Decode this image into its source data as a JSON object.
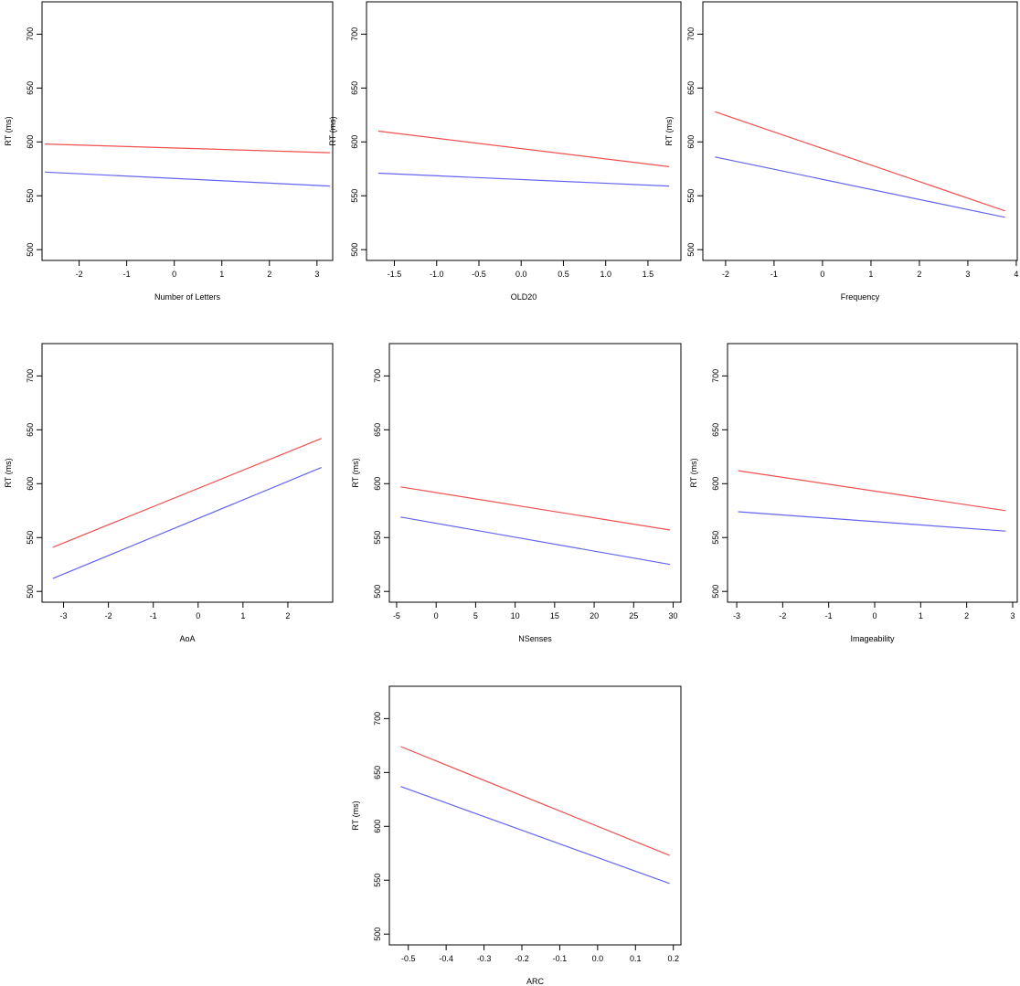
{
  "colors": {
    "red_series": "#f05050",
    "blue_series": "#6464f0",
    "axis": "#000000"
  },
  "chart_data": [
    {
      "type": "line",
      "xlabel": "Number of Letters",
      "ylabel": "RT (ms)",
      "xlim": [
        -2.78,
        3.33
      ],
      "ylim": [
        490,
        730
      ],
      "xticks": [
        -2,
        -1,
        0,
        1,
        2,
        3
      ],
      "xtick_labels": [
        "-2",
        "-1",
        "0",
        "1",
        "2",
        "3"
      ],
      "yticks": [
        500,
        550,
        600,
        650,
        700
      ],
      "ytick_labels": [
        "500",
        "550",
        "600",
        "650",
        "700"
      ],
      "series": [
        {
          "color": "#f05050",
          "x": [
            -2.72,
            3.27
          ],
          "y": [
            598,
            590
          ]
        },
        {
          "color": "#6464f0",
          "x": [
            -2.72,
            3.27
          ],
          "y": [
            572,
            559
          ]
        }
      ]
    },
    {
      "type": "line",
      "xlabel": "OLD20",
      "ylabel": "RT (ms)",
      "xlim": [
        -1.83,
        1.89
      ],
      "ylim": [
        490,
        730
      ],
      "xticks": [
        -1.5,
        -1.0,
        -0.5,
        0.0,
        0.5,
        1.0,
        1.5
      ],
      "xtick_labels": [
        "-1.5",
        "-1.0",
        "-0.5",
        "0.0",
        "0.5",
        "1.0",
        "1.5"
      ],
      "yticks": [
        500,
        550,
        600,
        650,
        700
      ],
      "ytick_labels": [
        "500",
        "550",
        "600",
        "650",
        "700"
      ],
      "series": [
        {
          "color": "#f05050",
          "x": [
            -1.69,
            1.75
          ],
          "y": [
            610,
            577
          ]
        },
        {
          "color": "#6464f0",
          "x": [
            -1.69,
            1.75
          ],
          "y": [
            571,
            559
          ]
        }
      ]
    },
    {
      "type": "line",
      "xlabel": "Frequency",
      "ylabel": "RT (ms)",
      "xlim": [
        -2.47,
        4.02
      ],
      "ylim": [
        490,
        730
      ],
      "xticks": [
        -2,
        -1,
        0,
        1,
        2,
        3,
        4
      ],
      "xtick_labels": [
        "-2",
        "-1",
        "0",
        "1",
        "2",
        "3",
        "4"
      ],
      "yticks": [
        500,
        550,
        600,
        650,
        700
      ],
      "ytick_labels": [
        "500",
        "550",
        "600",
        "650",
        "700"
      ],
      "series": [
        {
          "color": "#f05050",
          "x": [
            -2.22,
            3.77
          ],
          "y": [
            628,
            536
          ]
        },
        {
          "color": "#6464f0",
          "x": [
            -2.22,
            3.77
          ],
          "y": [
            586,
            530
          ]
        }
      ]
    },
    {
      "type": "line",
      "xlabel": "AoA",
      "ylabel": "RT (ms)",
      "xlim": [
        -3.48,
        3.0
      ],
      "ylim": [
        490,
        730
      ],
      "xticks": [
        -3,
        -2,
        -1,
        0,
        1,
        2
      ],
      "xtick_labels": [
        "-3",
        "-2",
        "-1",
        "0",
        "1",
        "2"
      ],
      "yticks": [
        500,
        550,
        600,
        650,
        700
      ],
      "ytick_labels": [
        "500",
        "550",
        "600",
        "650",
        "700"
      ],
      "series": [
        {
          "color": "#f05050",
          "x": [
            -3.24,
            2.75
          ],
          "y": [
            541,
            642
          ]
        },
        {
          "color": "#6464f0",
          "x": [
            -3.24,
            2.75
          ],
          "y": [
            512,
            615
          ]
        }
      ]
    },
    {
      "type": "line",
      "xlabel": "NSenses",
      "ylabel": "RT (ms)",
      "xlim": [
        -5.92,
        30.98
      ],
      "ylim": [
        490,
        730
      ],
      "xticks": [
        -5,
        0,
        5,
        10,
        15,
        20,
        25,
        30
      ],
      "xtick_labels": [
        "-5",
        "0",
        "5",
        "10",
        "15",
        "20",
        "25",
        "30"
      ],
      "yticks": [
        500,
        550,
        600,
        650,
        700
      ],
      "ytick_labels": [
        "500",
        "550",
        "600",
        "650",
        "700"
      ],
      "series": [
        {
          "color": "#f05050",
          "x": [
            -4.5,
            29.6
          ],
          "y": [
            597,
            557
          ]
        },
        {
          "color": "#6464f0",
          "x": [
            -4.5,
            29.6
          ],
          "y": [
            569,
            525
          ]
        }
      ]
    },
    {
      "type": "line",
      "xlabel": "Imageability",
      "ylabel": "RT (ms)",
      "xlim": [
        -3.2,
        3.1
      ],
      "ylim": [
        490,
        730
      ],
      "xticks": [
        -3,
        -2,
        -1,
        0,
        1,
        2,
        3
      ],
      "xtick_labels": [
        "-3",
        "-2",
        "-1",
        "0",
        "1",
        "2",
        "3"
      ],
      "yticks": [
        500,
        550,
        600,
        650,
        700
      ],
      "ytick_labels": [
        "500",
        "550",
        "600",
        "650",
        "700"
      ],
      "series": [
        {
          "color": "#f05050",
          "x": [
            -2.97,
            2.85
          ],
          "y": [
            612,
            575
          ]
        },
        {
          "color": "#6464f0",
          "x": [
            -2.97,
            2.85
          ],
          "y": [
            574,
            556
          ]
        }
      ]
    },
    {
      "type": "line",
      "xlabel": "ARC",
      "ylabel": "RT (ms)",
      "xlim": [
        -0.55,
        0.22
      ],
      "ylim": [
        490,
        730
      ],
      "xticks": [
        -0.5,
        -0.4,
        -0.3,
        -0.2,
        -0.1,
        0.0,
        0.1,
        0.2
      ],
      "xtick_labels": [
        "-0.5",
        "-0.4",
        "-0.3",
        "-0.2",
        "-0.1",
        "0.0",
        "0.1",
        "0.2"
      ],
      "yticks": [
        500,
        550,
        600,
        650,
        700
      ],
      "ytick_labels": [
        "500",
        "550",
        "600",
        "650",
        "700"
      ],
      "series": [
        {
          "color": "#f05050",
          "x": [
            -0.52,
            0.19
          ],
          "y": [
            674,
            573
          ]
        },
        {
          "color": "#6464f0",
          "x": [
            -0.52,
            0.19
          ],
          "y": [
            637,
            547
          ]
        }
      ]
    }
  ]
}
